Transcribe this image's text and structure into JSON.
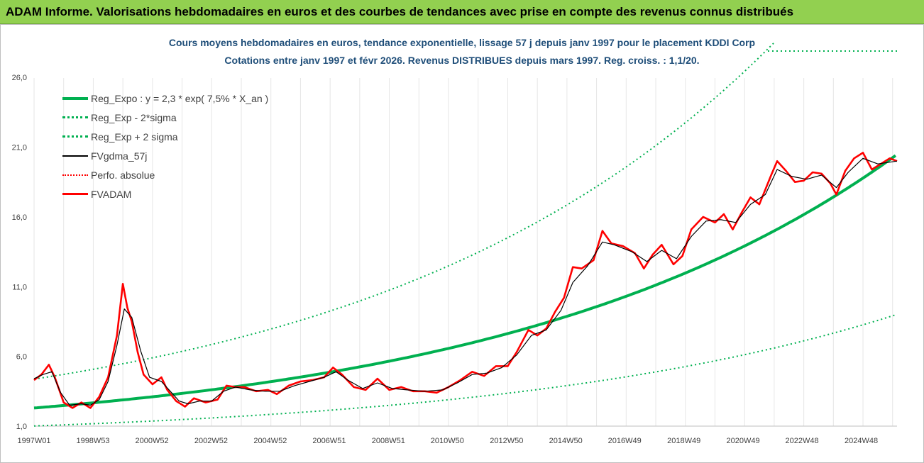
{
  "banner": {
    "title": "ADAM Informe. Valorisations hebdomadaires en euros et des courbes de tendances avec prise en compte des revenus connus distribués"
  },
  "chart_data": {
    "type": "line",
    "title_line1": "Cours moyens hebdomadaires en euros, tendance exponentielle, lissage 57 j depuis janv 1997 pour le placement KDDI Corp",
    "title_line2": "Cotations entre janv 1997 et févr 2026. Revenus DISTRIBUES depuis mars 1997. Reg. croiss. : 1,1/20.",
    "ylim": [
      1,
      28.5
    ],
    "yticks": [
      "1,0",
      "6,0",
      "11,0",
      "16,0",
      "21,0",
      "26,0"
    ],
    "ytick_values": [
      1,
      6,
      11,
      16,
      21,
      26
    ],
    "xlim": [
      1997.0,
      2026.15
    ],
    "xticks": [
      "1997W01",
      "1998W53",
      "2000W52",
      "2002W52",
      "2004W52",
      "2006W51",
      "2008W51",
      "2010W50",
      "2012W50",
      "2014W50",
      "2016W49",
      "2018W49",
      "2020W49",
      "2022W48",
      "2024W48"
    ],
    "xtick_values": [
      1997.0,
      1998.99,
      2000.98,
      2002.98,
      2004.98,
      2006.97,
      2008.97,
      2010.96,
      2012.96,
      2014.96,
      2016.95,
      2018.95,
      2020.95,
      2022.94,
      2024.94
    ],
    "grid": "vertical",
    "legend_position": "top-left",
    "regression": {
      "a": 2.3,
      "rate": 0.075
    },
    "series": [
      {
        "name": "Reg_Expo : y = 2,3 * exp( 7,5% *  X_an )",
        "color": "#00b050",
        "style": "solid-thick"
      },
      {
        "name": "Reg_Exp - 2*sigma",
        "color": "#00b050",
        "style": "dotted"
      },
      {
        "name": "Reg_Exp + 2 sigma",
        "color": "#00b050",
        "style": "dotted"
      },
      {
        "name": "FVgdma_57j",
        "color": "#000000",
        "style": "solid-thin"
      },
      {
        "name": "Perfo. absolue",
        "color": "#ff0000",
        "style": "dotted"
      },
      {
        "name": "FVADAM",
        "color": "#ff0000",
        "style": "solid-thick"
      }
    ],
    "fvadam_points": [
      [
        1997.0,
        4.3
      ],
      [
        1997.25,
        4.7
      ],
      [
        1997.5,
        5.4
      ],
      [
        1997.7,
        4.5
      ],
      [
        1998.0,
        2.7
      ],
      [
        1998.3,
        2.3
      ],
      [
        1998.6,
        2.7
      ],
      [
        1998.9,
        2.3
      ],
      [
        1999.2,
        3.1
      ],
      [
        1999.5,
        4.5
      ],
      [
        1999.8,
        7.5
      ],
      [
        2000.0,
        11.2
      ],
      [
        2000.15,
        9.5
      ],
      [
        2000.3,
        8.5
      ],
      [
        2000.5,
        6.3
      ],
      [
        2000.7,
        4.7
      ],
      [
        2001.0,
        4.0
      ],
      [
        2001.3,
        4.5
      ],
      [
        2001.5,
        3.6
      ],
      [
        2001.8,
        2.8
      ],
      [
        2002.1,
        2.4
      ],
      [
        2002.4,
        3.0
      ],
      [
        2002.8,
        2.7
      ],
      [
        2003.2,
        2.9
      ],
      [
        2003.5,
        3.9
      ],
      [
        2003.8,
        3.8
      ],
      [
        2004.1,
        3.8
      ],
      [
        2004.5,
        3.5
      ],
      [
        2004.9,
        3.6
      ],
      [
        2005.2,
        3.3
      ],
      [
        2005.6,
        3.9
      ],
      [
        2006.0,
        4.2
      ],
      [
        2006.4,
        4.3
      ],
      [
        2006.8,
        4.5
      ],
      [
        2007.1,
        5.2
      ],
      [
        2007.4,
        4.7
      ],
      [
        2007.8,
        3.8
      ],
      [
        2008.2,
        3.6
      ],
      [
        2008.6,
        4.4
      ],
      [
        2009.0,
        3.6
      ],
      [
        2009.4,
        3.8
      ],
      [
        2009.8,
        3.5
      ],
      [
        2010.2,
        3.5
      ],
      [
        2010.6,
        3.4
      ],
      [
        2011.0,
        3.8
      ],
      [
        2011.4,
        4.3
      ],
      [
        2011.8,
        4.9
      ],
      [
        2012.2,
        4.6
      ],
      [
        2012.6,
        5.3
      ],
      [
        2013.0,
        5.3
      ],
      [
        2013.3,
        6.3
      ],
      [
        2013.7,
        7.9
      ],
      [
        2014.0,
        7.5
      ],
      [
        2014.3,
        8.0
      ],
      [
        2014.6,
        9.2
      ],
      [
        2014.9,
        10.2
      ],
      [
        2015.2,
        12.4
      ],
      [
        2015.5,
        12.3
      ],
      [
        2015.9,
        12.9
      ],
      [
        2016.2,
        15.0
      ],
      [
        2016.5,
        14.1
      ],
      [
        2016.9,
        13.9
      ],
      [
        2017.3,
        13.4
      ],
      [
        2017.6,
        12.3
      ],
      [
        2017.9,
        13.3
      ],
      [
        2018.2,
        14.0
      ],
      [
        2018.6,
        12.6
      ],
      [
        2018.9,
        13.2
      ],
      [
        2019.2,
        15.1
      ],
      [
        2019.6,
        16.0
      ],
      [
        2020.0,
        15.6
      ],
      [
        2020.3,
        16.2
      ],
      [
        2020.6,
        15.1
      ],
      [
        2020.9,
        16.3
      ],
      [
        2021.2,
        17.4
      ],
      [
        2021.5,
        16.9
      ],
      [
        2021.9,
        19.0
      ],
      [
        2022.1,
        20.0
      ],
      [
        2022.4,
        19.3
      ],
      [
        2022.7,
        18.5
      ],
      [
        2023.0,
        18.6
      ],
      [
        2023.3,
        19.2
      ],
      [
        2023.6,
        19.1
      ],
      [
        2023.9,
        18.4
      ],
      [
        2024.1,
        17.6
      ],
      [
        2024.4,
        19.3
      ],
      [
        2024.7,
        20.2
      ],
      [
        2025.0,
        20.6
      ],
      [
        2025.3,
        19.4
      ],
      [
        2025.6,
        19.8
      ],
      [
        2025.9,
        20.2
      ],
      [
        2026.15,
        20.0
      ]
    ],
    "fvgdma_points": [
      [
        1997.0,
        4.4
      ],
      [
        1997.3,
        4.7
      ],
      [
        1997.6,
        4.9
      ],
      [
        1997.9,
        3.4
      ],
      [
        1998.2,
        2.5
      ],
      [
        1998.6,
        2.6
      ],
      [
        1998.9,
        2.5
      ],
      [
        1999.2,
        2.9
      ],
      [
        1999.5,
        4.2
      ],
      [
        1999.8,
        6.8
      ],
      [
        2000.05,
        9.4
      ],
      [
        2000.3,
        8.8
      ],
      [
        2000.6,
        6.4
      ],
      [
        2000.9,
        4.5
      ],
      [
        2001.3,
        4.2
      ],
      [
        2001.6,
        3.5
      ],
      [
        2001.9,
        2.8
      ],
      [
        2002.2,
        2.6
      ],
      [
        2002.6,
        2.8
      ],
      [
        2003.0,
        2.8
      ],
      [
        2003.4,
        3.5
      ],
      [
        2003.8,
        3.8
      ],
      [
        2004.3,
        3.6
      ],
      [
        2004.8,
        3.5
      ],
      [
        2005.3,
        3.5
      ],
      [
        2005.8,
        3.9
      ],
      [
        2006.3,
        4.2
      ],
      [
        2006.8,
        4.5
      ],
      [
        2007.2,
        4.9
      ],
      [
        2007.6,
        4.3
      ],
      [
        2008.1,
        3.7
      ],
      [
        2008.6,
        4.1
      ],
      [
        2009.1,
        3.7
      ],
      [
        2009.6,
        3.6
      ],
      [
        2010.2,
        3.5
      ],
      [
        2010.8,
        3.6
      ],
      [
        2011.3,
        4.1
      ],
      [
        2011.8,
        4.7
      ],
      [
        2012.3,
        4.8
      ],
      [
        2012.8,
        5.2
      ],
      [
        2013.3,
        6.1
      ],
      [
        2013.8,
        7.5
      ],
      [
        2014.3,
        7.9
      ],
      [
        2014.8,
        9.3
      ],
      [
        2015.2,
        11.3
      ],
      [
        2015.7,
        12.5
      ],
      [
        2016.2,
        14.2
      ],
      [
        2016.6,
        14.0
      ],
      [
        2017.2,
        13.5
      ],
      [
        2017.7,
        12.8
      ],
      [
        2018.2,
        13.6
      ],
      [
        2018.7,
        13.0
      ],
      [
        2019.2,
        14.6
      ],
      [
        2019.7,
        15.7
      ],
      [
        2020.2,
        15.8
      ],
      [
        2020.7,
        15.6
      ],
      [
        2021.2,
        16.9
      ],
      [
        2021.7,
        17.6
      ],
      [
        2022.1,
        19.4
      ],
      [
        2022.6,
        18.9
      ],
      [
        2023.1,
        18.7
      ],
      [
        2023.6,
        19.0
      ],
      [
        2024.1,
        18.1
      ],
      [
        2024.5,
        19.2
      ],
      [
        2025.0,
        20.2
      ],
      [
        2025.5,
        19.8
      ],
      [
        2026.15,
        20.0
      ]
    ]
  }
}
